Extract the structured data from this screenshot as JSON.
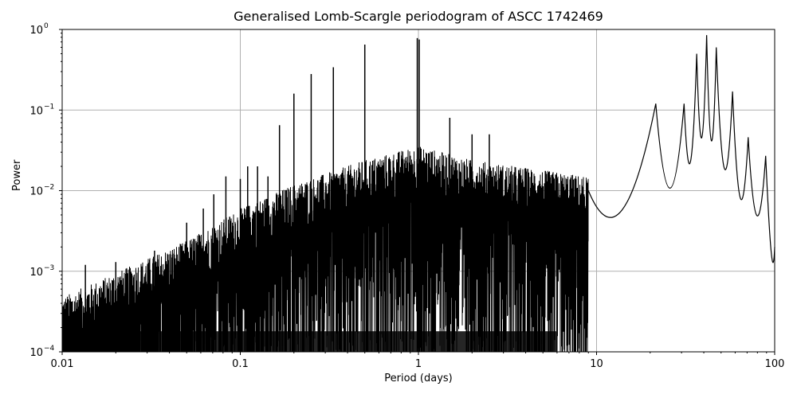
{
  "chart_data": {
    "type": "line",
    "title": "Generalised Lomb-Scargle periodogram of ASCC 1742469",
    "xlabel": "Period (days)",
    "ylabel": "Power",
    "xscale": "log",
    "yscale": "log",
    "xlim": [
      0.01,
      100
    ],
    "ylim": [
      0.0001,
      1
    ],
    "grid": true,
    "x_ticks": [
      {
        "value": 0.01,
        "label": "0.01"
      },
      {
        "value": 0.1,
        "label": "0.1"
      },
      {
        "value": 1,
        "label": "1"
      },
      {
        "value": 10,
        "label": "10"
      },
      {
        "value": 100,
        "label": "100"
      }
    ],
    "y_ticks": [
      {
        "value": 0.0001,
        "base": "10",
        "exp": "−4"
      },
      {
        "value": 0.001,
        "base": "10",
        "exp": "−3"
      },
      {
        "value": 0.01,
        "base": "10",
        "exp": "−2"
      },
      {
        "value": 0.1,
        "base": "10",
        "exp": "−1"
      },
      {
        "value": 1,
        "base": "10",
        "exp": "0"
      }
    ],
    "line_color": "#000000",
    "grid_color": "#b0b0b0",
    "noise_envelope": {
      "x": [
        0.01,
        0.02,
        0.05,
        0.1,
        0.2,
        0.5,
        1,
        2,
        5,
        10
      ],
      "y": [
        0.0004,
        0.0008,
        0.002,
        0.005,
        0.01,
        0.02,
        0.03,
        0.02,
        0.015,
        0.012
      ]
    },
    "peaks": [
      {
        "period": 0.0135,
        "power": 0.0012
      },
      {
        "period": 0.02,
        "power": 0.0013
      },
      {
        "period": 0.033,
        "power": 0.0018
      },
      {
        "period": 0.05,
        "power": 0.004
      },
      {
        "period": 0.062,
        "power": 0.006
      },
      {
        "period": 0.071,
        "power": 0.009
      },
      {
        "period": 0.083,
        "power": 0.015
      },
      {
        "period": 0.1,
        "power": 0.014
      },
      {
        "period": 0.11,
        "power": 0.02
      },
      {
        "period": 0.125,
        "power": 0.02
      },
      {
        "period": 0.143,
        "power": 0.015
      },
      {
        "period": 0.166,
        "power": 0.065
      },
      {
        "period": 0.2,
        "power": 0.16
      },
      {
        "period": 0.25,
        "power": 0.28
      },
      {
        "period": 0.333,
        "power": 0.34
      },
      {
        "period": 0.5,
        "power": 0.65
      },
      {
        "period": 0.985,
        "power": 0.78
      },
      {
        "period": 1.01,
        "power": 0.75
      },
      {
        "period": 1.5,
        "power": 0.08
      },
      {
        "period": 2.0,
        "power": 0.05
      },
      {
        "period": 2.5,
        "power": 0.05
      }
    ],
    "long_period_lobes": [
      {
        "period": 21.5,
        "power": 0.12
      },
      {
        "period": 31.0,
        "power": 0.12
      },
      {
        "period": 36.5,
        "power": 0.5
      },
      {
        "period": 41.5,
        "power": 0.85
      },
      {
        "period": 47.0,
        "power": 0.6
      },
      {
        "period": 58.0,
        "power": 0.17
      },
      {
        "period": 71.0,
        "power": 0.046
      },
      {
        "period": 89.0,
        "power": 0.027
      }
    ]
  }
}
